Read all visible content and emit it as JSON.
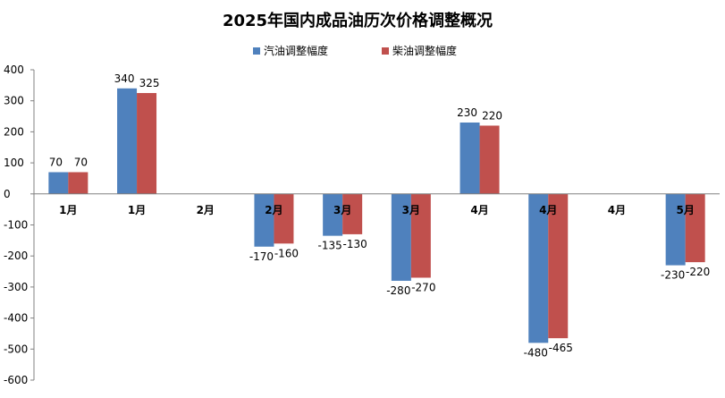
{
  "chart_data": {
    "type": "bar",
    "title": "2025年国内成品油历次价格调整概况",
    "categories": [
      "1月",
      "1月",
      "2月",
      "2月",
      "3月",
      "3月",
      "4月",
      "4月",
      "4月",
      "5月"
    ],
    "series": [
      {
        "name": "汽油调整幅度",
        "color": "#4f81bd",
        "values": [
          70,
          340,
          null,
          -170,
          -135,
          -280,
          230,
          -480,
          null,
          -230
        ]
      },
      {
        "name": "柴油调整幅度",
        "color": "#c0504d",
        "values": [
          70,
          325,
          null,
          -160,
          -130,
          -270,
          220,
          -465,
          null,
          -220
        ]
      }
    ],
    "yticks": [
      400,
      300,
      200,
      100,
      0,
      -100,
      -200,
      -300,
      -400,
      -500,
      -600
    ],
    "ylim": [
      -600,
      400
    ],
    "legend_position": "top"
  }
}
